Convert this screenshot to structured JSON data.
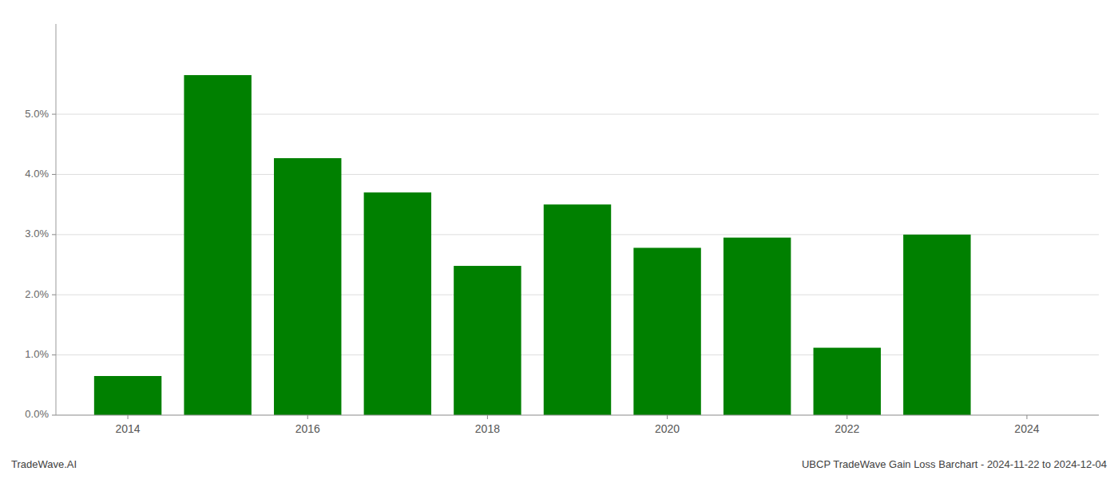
{
  "chart_data": {
    "type": "bar",
    "x": [
      2014,
      2015,
      2016,
      2017,
      2018,
      2019,
      2020,
      2021,
      2022,
      2023,
      2024
    ],
    "values": [
      0.0065,
      0.0565,
      0.0427,
      0.037,
      0.0248,
      0.035,
      0.0278,
      0.0295,
      0.0112,
      0.03,
      null
    ],
    "color": "#008000",
    "xlim": [
      2013.2,
      2024.8
    ],
    "xticks": [
      2014,
      2016,
      2018,
      2020,
      2022,
      2024
    ],
    "ylim": [
      0,
      0.065
    ],
    "yticks": [
      {
        "value": 0.0,
        "label": "0.0%"
      },
      {
        "value": 0.01,
        "label": "1.0%"
      },
      {
        "value": 0.02,
        "label": "2.0%"
      },
      {
        "value": 0.03,
        "label": "3.0%"
      },
      {
        "value": 0.04,
        "label": "4.0%"
      },
      {
        "value": 0.05,
        "label": "5.0%"
      }
    ],
    "grid": true,
    "annotations": [
      "TradeWave.AI",
      "UBCP TradeWave Gain Loss Barchart - 2024-11-22 to 2024-12-04"
    ]
  }
}
